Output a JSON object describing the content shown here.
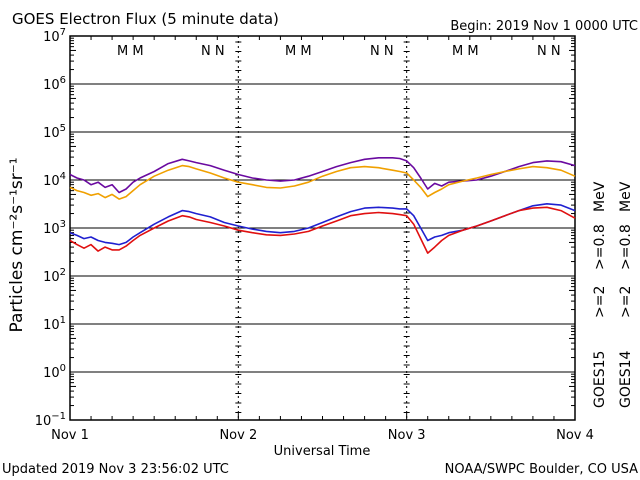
{
  "header": {
    "title": "GOES Electron Flux (5 minute data)",
    "begin": "Begin: 2019 Nov 1 0000 UTC"
  },
  "footer": {
    "updated": "Updated 2019 Nov  3 23:56:02 UTC",
    "credit": "NOAA/SWPC Boulder, CO USA"
  },
  "colors": {
    "goes15_2mev": "#2020d0",
    "goes14_2mev": "#e01010",
    "goes15_08mev": "#6a0aa0",
    "goes14_08mev": "#f0a000",
    "mark_m": "#d01010",
    "mark_n": "#2020d0"
  },
  "right_labels": {
    "goes15": "GOES15",
    "goes14": "GOES14",
    "g15_2": ">=2",
    "g14_2": ">=2",
    "g15_08": ">=0.8",
    "g14_08": ">=0.8",
    "mev1": "MeV",
    "mev2": "MeV"
  },
  "markers": {
    "day1": {
      "m": "M M",
      "n": "N N"
    },
    "day2": {
      "m": "M M",
      "n": "N N"
    },
    "day3": {
      "m": "M M",
      "n": "N N"
    }
  },
  "chart_data": {
    "type": "line",
    "title": "GOES Electron Flux (5 minute data)",
    "xlabel": "Universal Time",
    "ylabel": "Particles cm⁻²s⁻¹sr⁻¹",
    "x_unit": "hours since 2019 Nov 1 0000 UTC",
    "xlim": [
      0,
      72
    ],
    "x_ticks": [
      {
        "x": 0,
        "label": "Nov 1"
      },
      {
        "x": 24,
        "label": "Nov 2"
      },
      {
        "x": 48,
        "label": "Nov 3"
      },
      {
        "x": 72,
        "label": "Nov 4"
      }
    ],
    "yscale": "log",
    "ylim": [
      0.1,
      10000000
    ],
    "y_ticks": [
      {
        "exp": 7,
        "base": "10",
        "sup": "7"
      },
      {
        "exp": 6,
        "base": "10",
        "sup": "6"
      },
      {
        "exp": 5,
        "base": "10",
        "sup": "5"
      },
      {
        "exp": 4,
        "base": "10",
        "sup": "4"
      },
      {
        "exp": 3,
        "base": "10",
        "sup": "3"
      },
      {
        "exp": 2,
        "base": "10",
        "sup": "2"
      },
      {
        "exp": 1,
        "base": "10",
        "sup": "1"
      },
      {
        "exp": 0,
        "base": "10",
        "sup": "0"
      },
      {
        "exp": -1,
        "base": "10",
        "sup": "−1"
      }
    ],
    "threshold": 1000,
    "grid": true,
    "series": [
      {
        "name": "GOES15 >=0.8 MeV",
        "color": "#6a0aa0",
        "x": [
          0,
          1,
          2,
          3,
          4,
          5,
          6,
          7,
          8,
          9,
          10,
          12,
          14,
          16,
          17,
          18,
          20,
          22,
          24,
          26,
          28,
          30,
          32,
          34,
          36,
          38,
          40,
          42,
          44,
          46,
          47,
          48,
          49,
          50,
          51,
          52,
          53,
          54,
          56,
          58,
          60,
          62,
          64,
          66,
          68,
          70,
          72
        ],
        "y": [
          13000,
          11000,
          10000,
          8000,
          9000,
          7000,
          8000,
          5500,
          6500,
          9000,
          11000,
          15000,
          22000,
          27000,
          25000,
          23000,
          20000,
          16000,
          13000,
          11000,
          10000,
          9500,
          10000,
          12000,
          15000,
          19000,
          23000,
          27000,
          29000,
          29000,
          28000,
          25000,
          18000,
          11000,
          6500,
          8500,
          7500,
          9000,
          9500,
          10000,
          12000,
          15000,
          19000,
          23000,
          25000,
          24000,
          20000
        ]
      },
      {
        "name": "GOES14 >=0.8 MeV",
        "color": "#f0a000",
        "x": [
          0,
          1,
          2,
          3,
          4,
          5,
          6,
          7,
          8,
          9,
          10,
          12,
          14,
          16,
          17,
          18,
          20,
          22,
          24,
          26,
          28,
          30,
          32,
          34,
          36,
          38,
          40,
          42,
          44,
          46,
          47,
          48,
          49,
          50,
          51,
          52,
          53,
          54,
          56,
          58,
          60,
          62,
          64,
          66,
          68,
          70,
          72
        ],
        "y": [
          7000,
          6000,
          5500,
          4800,
          5200,
          4300,
          5000,
          4000,
          4500,
          6000,
          8000,
          12000,
          16000,
          20000,
          19000,
          17000,
          14000,
          11000,
          9000,
          8000,
          7000,
          6800,
          7500,
          9000,
          12000,
          15000,
          18000,
          19000,
          18000,
          16000,
          15000,
          14000,
          10000,
          7000,
          4500,
          5500,
          6500,
          8000,
          9500,
          11000,
          13000,
          15000,
          17000,
          19000,
          18000,
          16000,
          12000
        ]
      },
      {
        "name": "GOES15 >=2 MeV",
        "color": "#2020d0",
        "x": [
          0,
          1,
          2,
          3,
          4,
          5,
          6,
          7,
          8,
          9,
          10,
          12,
          14,
          16,
          17,
          18,
          20,
          22,
          24,
          26,
          28,
          30,
          32,
          34,
          36,
          38,
          40,
          42,
          44,
          46,
          47,
          48,
          49,
          50,
          51,
          52,
          53,
          54,
          56,
          58,
          60,
          62,
          64,
          66,
          68,
          70,
          72
        ],
        "y": [
          800,
          700,
          600,
          650,
          550,
          500,
          480,
          450,
          500,
          650,
          800,
          1200,
          1700,
          2300,
          2200,
          2000,
          1700,
          1300,
          1100,
          950,
          850,
          800,
          850,
          1000,
          1300,
          1700,
          2200,
          2600,
          2700,
          2600,
          2500,
          2500,
          1800,
          1000,
          550,
          650,
          700,
          800,
          900,
          1100,
          1400,
          1800,
          2300,
          2900,
          3200,
          3000,
          2300
        ]
      },
      {
        "name": "GOES14 >=2 MeV",
        "color": "#e01010",
        "x": [
          0,
          1,
          2,
          3,
          4,
          5,
          6,
          7,
          8,
          9,
          10,
          12,
          14,
          16,
          17,
          18,
          20,
          22,
          24,
          26,
          28,
          30,
          32,
          34,
          36,
          38,
          40,
          42,
          44,
          46,
          47,
          48,
          49,
          50,
          51,
          52,
          53,
          54,
          56,
          58,
          60,
          62,
          64,
          66,
          68,
          70,
          72
        ],
        "y": [
          550,
          450,
          380,
          450,
          330,
          400,
          350,
          350,
          420,
          550,
          700,
          1000,
          1400,
          1800,
          1700,
          1500,
          1300,
          1100,
          900,
          800,
          720,
          700,
          750,
          850,
          1100,
          1400,
          1800,
          2000,
          2100,
          2000,
          1900,
          1800,
          1200,
          600,
          300,
          400,
          550,
          700,
          900,
          1100,
          1400,
          1800,
          2300,
          2600,
          2700,
          2300,
          1600
        ]
      }
    ]
  }
}
